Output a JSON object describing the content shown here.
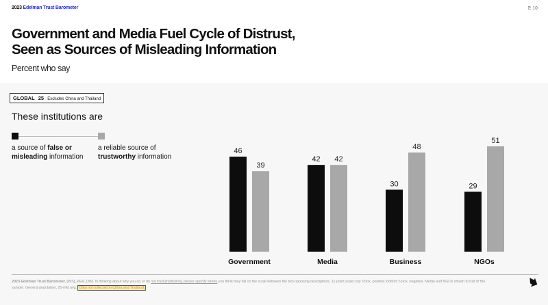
{
  "header": {
    "brand_year": "2023",
    "brand_name": "Edelman Trust Barometer",
    "page_number": "P. 10",
    "title_line1": "Government and Media Fuel Cycle of Distrust,",
    "title_line2": "Seen as Sources of Misleading Information",
    "subtitle": "Percent who say"
  },
  "global_tag": {
    "label": "GLOBAL",
    "count": "25",
    "note": "Excludes China and Thailand"
  },
  "question_lead": "These institutions are",
  "legend": {
    "left": {
      "pre": "a source of ",
      "bold1": "false or",
      "bold2": "misleading",
      "post": " information",
      "color": "#0d0d0d"
    },
    "right": {
      "pre": "a reliable source of",
      "bold": "trustworthy",
      "post": " information",
      "color": "#a8a8a8"
    }
  },
  "chart_data": {
    "type": "bar",
    "title": "Government and Media Fuel Cycle of Distrust, Seen as Sources of Misleading Information",
    "subtitle": "Percent who say",
    "xlabel": "",
    "ylabel": "",
    "categories": [
      "Government",
      "Media",
      "Business",
      "NGOs"
    ],
    "series": [
      {
        "name": "a source of false or misleading information",
        "color": "#0d0d0d",
        "values": [
          46,
          42,
          30,
          29
        ]
      },
      {
        "name": "a reliable source of trustworthy information",
        "color": "#a8a8a8",
        "values": [
          39,
          42,
          48,
          51
        ]
      }
    ],
    "ylim": [
      0,
      100
    ],
    "grid": false,
    "legend": "top-left",
    "data_labels": true
  },
  "footer": {
    "source_bold": "2023 Edelman Trust Barometer.",
    "text1": " [INS]_PER_DIM. In thinking about why you do or do ",
    "underlined": "not trust [institution], please specify where",
    "text2": " you think they fall on the scale between the two opposing descriptions. 11-point scale; top 5 box, positive; bottom 5 box, negative. Media and NGOs shown to half of the sample. General population, 25-mkt avg.",
    "highlight": "Data not collected in China and Thailand.",
    "next_icon": "arrow-turn-right-icon"
  }
}
